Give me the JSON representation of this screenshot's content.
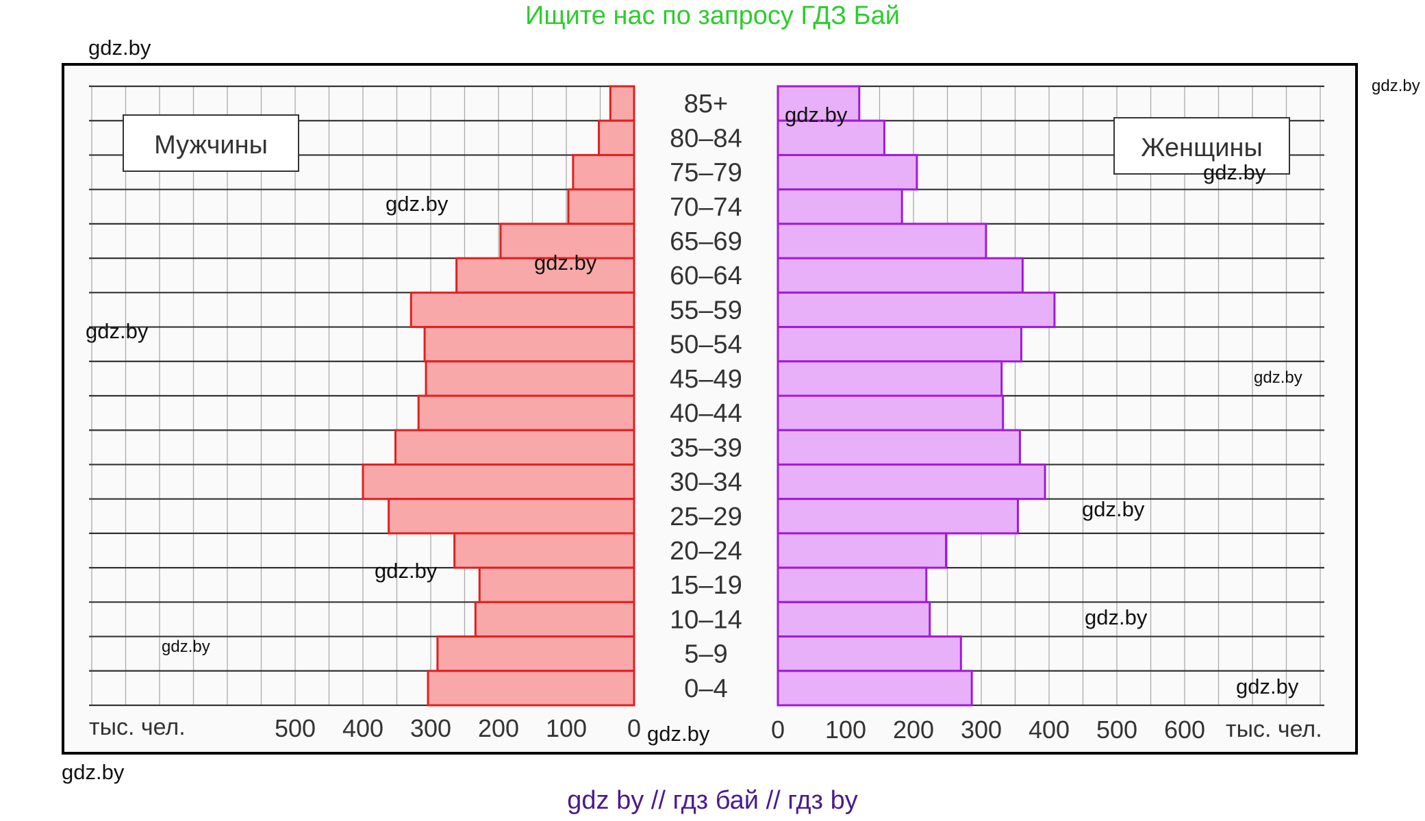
{
  "header": {
    "text": "Ищите нас по запросу ГДЗ Бай"
  },
  "footer": {
    "text": "gdz by  //  гдз бай  //  гдз by"
  },
  "watermark": "gdz.by",
  "chart_data": {
    "type": "bar",
    "orientation": "horizontal population pyramid",
    "categories": [
      "85+",
      "80–84",
      "75–79",
      "70–74",
      "65–69",
      "60–64",
      "55–59",
      "50–54",
      "45–49",
      "40–44",
      "35–39",
      "30–34",
      "25–29",
      "20–24",
      "15–19",
      "10–14",
      "5–9",
      "0–4"
    ],
    "series": [
      {
        "name": "Мужчины",
        "color": "#f8a8a8",
        "stroke": "#e02020",
        "values": [
          35,
          52,
          90,
          97,
          197,
          262,
          329,
          309,
          307,
          318,
          352,
          400,
          362,
          265,
          228,
          234,
          290,
          304
        ]
      },
      {
        "name": "Женщины",
        "color": "#e8b0f8",
        "stroke": "#a01ad8",
        "values": [
          120,
          157,
          205,
          183,
          307,
          361,
          408,
          359,
          330,
          332,
          357,
          394,
          354,
          248,
          219,
          224,
          270,
          286
        ]
      }
    ],
    "left_axis": {
      "ticks": [
        "500",
        "400",
        "300",
        "200",
        "100",
        "0"
      ],
      "unit": "тыс. чел.",
      "xlim": [
        0,
        800
      ]
    },
    "right_axis": {
      "ticks": [
        "0",
        "100",
        "200",
        "300",
        "400",
        "500",
        "600"
      ],
      "unit": "тыс. чел.",
      "xlim": [
        0,
        800
      ]
    },
    "legend": {
      "left": "Мужчины",
      "right": "Женщины"
    }
  }
}
